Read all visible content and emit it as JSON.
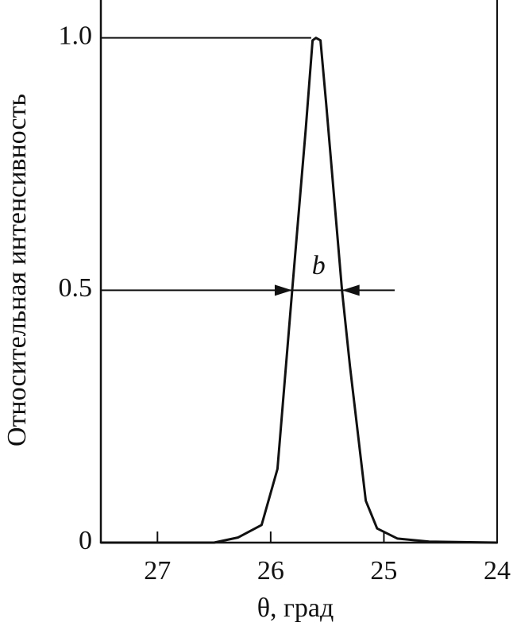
{
  "chart_data": {
    "type": "line",
    "x_label": "θ, град",
    "y_label": "Относительная интенсивность",
    "annotation": "b",
    "series": [
      {
        "name": null,
        "color": "#111111",
        "x": [
          27.5,
          26.5,
          26.29,
          26.08,
          25.94,
          25.81,
          25.69,
          25.63,
          25.6,
          25.56,
          25.51,
          25.37,
          25.3,
          25.16,
          25.06,
          24.88,
          24.6,
          24.0
        ],
        "values": [
          0,
          0,
          0.01,
          0.035,
          0.146,
          0.5,
          0.82,
          0.995,
          1.0,
          0.995,
          0.87,
          0.5,
          0.35,
          0.083,
          0.028,
          0.008,
          0.002,
          0
        ]
      }
    ],
    "xlim": [
      27.5,
      24
    ],
    "xticks": [
      27,
      26,
      25,
      24
    ],
    "ylim": [
      0,
      1.075
    ],
    "yticks": [
      0,
      0.5,
      {
        "value": 1,
        "label": "1.0"
      }
    ]
  }
}
